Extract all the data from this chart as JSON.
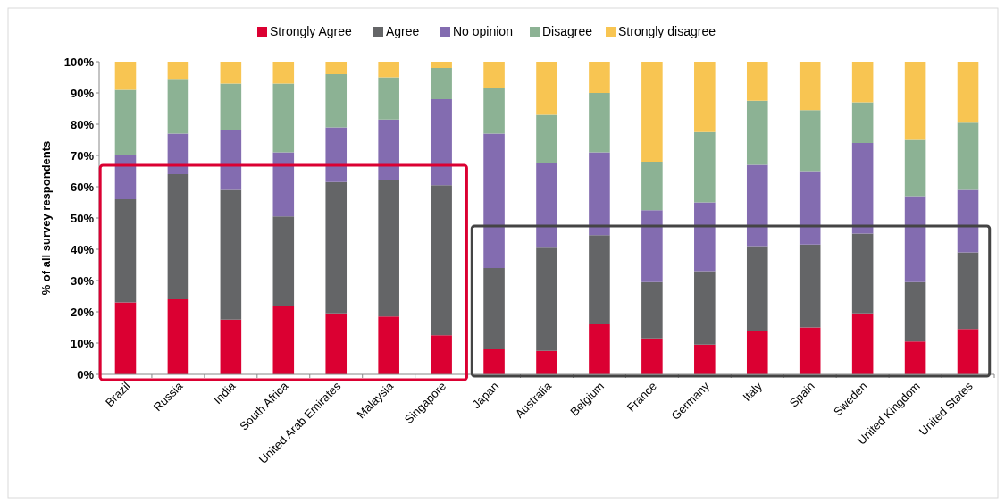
{
  "chart_data": {
    "type": "bar",
    "stacked": true,
    "ylabel": "% of all survey respondents",
    "legend": "top",
    "grid": false,
    "categories": [
      "Brazil",
      "Russia",
      "India",
      "South Africa",
      "United Arab Emirates",
      "Malaysia",
      "Singapore",
      "Japan",
      "Australia",
      "Belgium",
      "France",
      "Germany",
      "Italy",
      "Spain",
      "Sweden",
      "United Kingdom",
      "United States"
    ],
    "ylim": [
      0,
      100
    ],
    "yticks": [
      {
        "value": 0,
        "label": "0%"
      },
      {
        "value": 10,
        "label": "10%"
      },
      {
        "value": 20,
        "label": "20%"
      },
      {
        "value": 30,
        "label": "30%"
      },
      {
        "value": 40,
        "label": "40%"
      },
      {
        "value": 50,
        "label": "50%"
      },
      {
        "value": 60,
        "label": "60%"
      },
      {
        "value": 70,
        "label": "70%"
      },
      {
        "value": 80,
        "label": "80%"
      },
      {
        "value": 90,
        "label": "90%"
      },
      {
        "value": 100,
        "label": "100%"
      }
    ],
    "series": [
      {
        "name": "Strongly Agree",
        "color": "#db0032",
        "values": [
          23,
          24,
          17.5,
          22,
          19.5,
          18.5,
          12.5,
          8,
          7.5,
          16,
          11.5,
          9.5,
          14,
          15,
          19.5,
          10.5,
          14.5
        ]
      },
      {
        "name": "Agree",
        "color": "#646567",
        "values": [
          33,
          40,
          41.5,
          28.5,
          42,
          43.5,
          48,
          26,
          33,
          28.5,
          18,
          23.5,
          27,
          26.5,
          25.5,
          19,
          24.5
        ]
      },
      {
        "name": "No opinion",
        "color": "#836cb0",
        "values": [
          14,
          13,
          19,
          20.5,
          17.5,
          19.5,
          27.5,
          43,
          27,
          26.5,
          23,
          22,
          26,
          23.5,
          29,
          27.5,
          20
        ]
      },
      {
        "name": "Disagree",
        "color": "#8cb294",
        "values": [
          21,
          17.5,
          15,
          22,
          17,
          13.5,
          10,
          14.5,
          15.5,
          19,
          15.5,
          22.5,
          20.5,
          19.5,
          13,
          18,
          21.5
        ]
      },
      {
        "name": "Strongly disagree",
        "color": "#f8c552",
        "values": [
          9,
          5.5,
          7,
          7,
          4,
          5,
          2,
          8.5,
          17,
          10,
          32,
          22.5,
          12.5,
          15.5,
          13,
          25,
          19.5
        ]
      }
    ]
  }
}
